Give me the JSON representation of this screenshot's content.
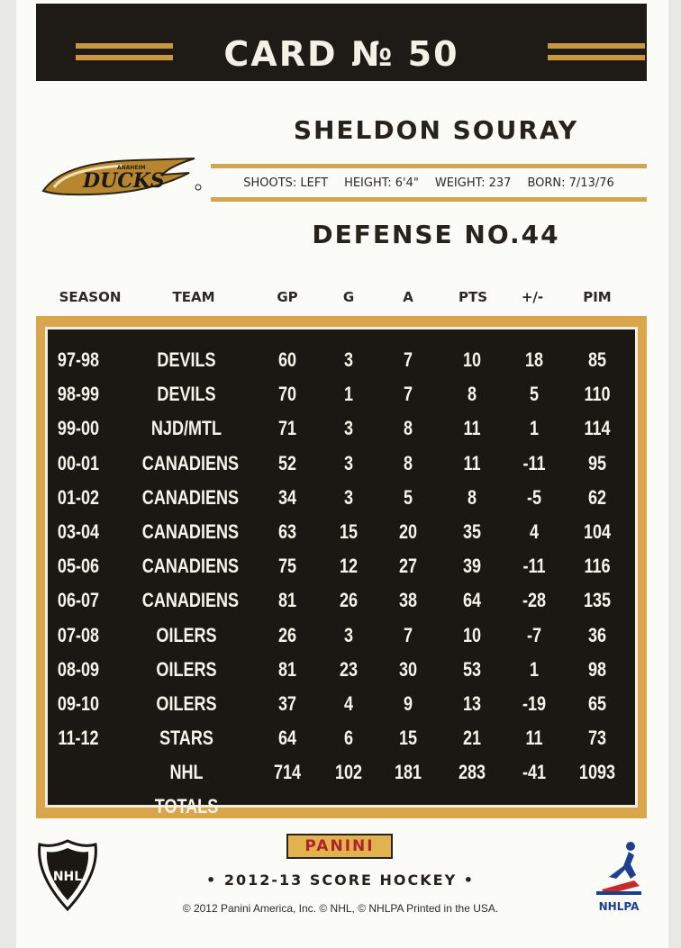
{
  "header": {
    "card_number": "CARD № 50"
  },
  "player": {
    "name": "SHELDON SOURAY",
    "position": "DEFENSE NO.44",
    "bio": {
      "shoots": "SHOOTS: LEFT",
      "height": "HEIGHT: 6'4\"",
      "weight": "WEIGHT: 237",
      "born": "BORN: 7/13/76"
    }
  },
  "team_logo": {
    "icon": "ducks-logo-icon",
    "text": "DUCKS",
    "small_text": "ANAHEIM"
  },
  "stats": {
    "columns": [
      "SEASON",
      "TEAM",
      "GP",
      "G",
      "A",
      "PTS",
      "+/-",
      "PIM"
    ],
    "rows": [
      [
        "97-98",
        "DEVILS",
        "60",
        "3",
        "7",
        "10",
        "18",
        "85"
      ],
      [
        "98-99",
        "DEVILS",
        "70",
        "1",
        "7",
        "8",
        "5",
        "110"
      ],
      [
        "99-00",
        "NJD/MTL",
        "71",
        "3",
        "8",
        "11",
        "1",
        "114"
      ],
      [
        "00-01",
        "CANADIENS",
        "52",
        "3",
        "8",
        "11",
        "-11",
        "95"
      ],
      [
        "01-02",
        "CANADIENS",
        "34",
        "3",
        "5",
        "8",
        "-5",
        "62"
      ],
      [
        "03-04",
        "CANADIENS",
        "63",
        "15",
        "20",
        "35",
        "4",
        "104"
      ],
      [
        "05-06",
        "CANADIENS",
        "75",
        "12",
        "27",
        "39",
        "-11",
        "116"
      ],
      [
        "06-07",
        "CANADIENS",
        "81",
        "26",
        "38",
        "64",
        "-28",
        "135"
      ],
      [
        "07-08",
        "OILERS",
        "26",
        "3",
        "7",
        "10",
        "-7",
        "36"
      ],
      [
        "08-09",
        "OILERS",
        "81",
        "23",
        "30",
        "53",
        "1",
        "98"
      ],
      [
        "09-10",
        "OILERS",
        "37",
        "4",
        "9",
        "13",
        "-19",
        "65"
      ],
      [
        "11-12",
        "STARS",
        "64",
        "6",
        "15",
        "21",
        "11",
        "73"
      ],
      [
        "",
        "NHL TOTALS",
        "714",
        "102",
        "181",
        "283",
        "-41",
        "1093"
      ]
    ]
  },
  "footer": {
    "brand": "PANINI",
    "set_name": "• 2012-13 SCORE HOCKEY •",
    "copyright": "© 2012 Panini America, Inc. © NHL, © NHLPA Printed in the USA.",
    "nhl_logo_text": "NHL",
    "nhlpa_text": "NHLPA"
  },
  "colors": {
    "gold": "#d9a64b",
    "dark": "#1b1813",
    "panini_red": "#b0242a"
  }
}
